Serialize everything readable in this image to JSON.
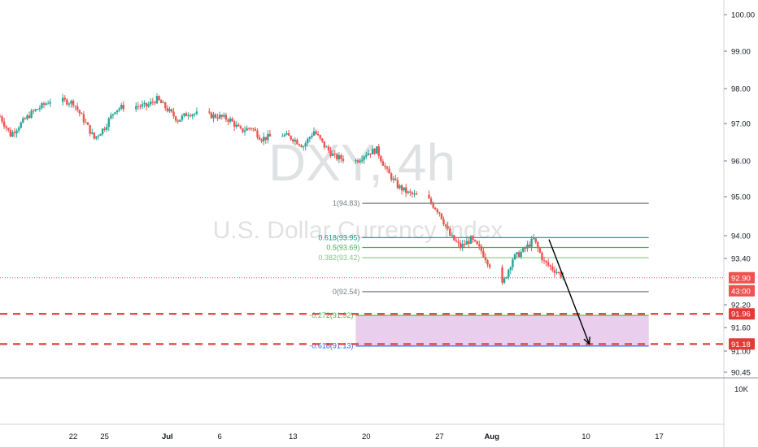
{
  "chart_data": {
    "type": "candlestick",
    "symbol": "DXY, 4h",
    "instrument": "U.S. Dollar Currency Index",
    "y_axis": {
      "ylim": [
        90.2,
        100.5
      ],
      "ticks": [
        {
          "value": 100.0,
          "label": "100.00"
        },
        {
          "value": 99.0,
          "label": "99.00"
        },
        {
          "value": 98.0,
          "label": "98.00"
        },
        {
          "value": 97.0,
          "label": "97.00"
        },
        {
          "value": 96.0,
          "label": "96.00"
        },
        {
          "value": 95.0,
          "label": "95.00"
        },
        {
          "value": 94.0,
          "label": "94.00"
        },
        {
          "value": 93.4,
          "label": "93.40"
        },
        {
          "value": 92.2,
          "label": "92.20"
        },
        {
          "value": 91.6,
          "label": "91.60"
        },
        {
          "value": 91.0,
          "label": "91.00"
        },
        {
          "value": 90.45,
          "label": "90.45"
        }
      ]
    },
    "x_axis": {
      "start_date": "2020-06-15",
      "end_date": "2020-08-21",
      "ticks": [
        {
          "date": "2020-06-22",
          "label": "22",
          "bold": false
        },
        {
          "date": "2020-06-25",
          "label": "25",
          "bold": false
        },
        {
          "date": "2020-07-01",
          "label": "Jul",
          "bold": true
        },
        {
          "date": "2020-07-06",
          "label": "6",
          "bold": false
        },
        {
          "date": "2020-07-13",
          "label": "13",
          "bold": false
        },
        {
          "date": "2020-07-20",
          "label": "20",
          "bold": false
        },
        {
          "date": "2020-07-27",
          "label": "27",
          "bold": false
        },
        {
          "date": "2020-08-01",
          "label": "Aug",
          "bold": true
        },
        {
          "date": "2020-08-10",
          "label": "10",
          "bold": false
        },
        {
          "date": "2020-08-17",
          "label": "17",
          "bold": false
        }
      ]
    },
    "price_path": [
      [
        "2020-06-15",
        97.2
      ],
      [
        "2020-06-16",
        96.7
      ],
      [
        "2020-06-17",
        97.0
      ],
      [
        "2020-06-18",
        97.3
      ],
      [
        "2020-06-19",
        97.5
      ],
      [
        "2020-06-20",
        97.7
      ],
      [
        "2020-06-22",
        97.6
      ],
      [
        "2020-06-23",
        97.1
      ],
      [
        "2020-06-24",
        96.6
      ],
      [
        "2020-06-25",
        96.9
      ],
      [
        "2020-06-26",
        97.4
      ],
      [
        "2020-06-27",
        97.5
      ],
      [
        "2020-06-29",
        97.5
      ],
      [
        "2020-06-30",
        97.7
      ],
      [
        "2020-07-01",
        97.4
      ],
      [
        "2020-07-02",
        97.1
      ],
      [
        "2020-07-03",
        97.3
      ],
      [
        "2020-07-06",
        97.2
      ],
      [
        "2020-07-07",
        97.1
      ],
      [
        "2020-07-08",
        96.8
      ],
      [
        "2020-07-09",
        96.9
      ],
      [
        "2020-07-10",
        96.6
      ],
      [
        "2020-07-12",
        96.7
      ],
      [
        "2020-07-13",
        96.6
      ],
      [
        "2020-07-14",
        96.4
      ],
      [
        "2020-07-15",
        96.8
      ],
      [
        "2020-07-16",
        96.4
      ],
      [
        "2020-07-17",
        96.1
      ],
      [
        "2020-07-19",
        96.0
      ],
      [
        "2020-07-20",
        96.2
      ],
      [
        "2020-07-21",
        96.3
      ],
      [
        "2020-07-22",
        95.7
      ],
      [
        "2020-07-23",
        95.3
      ],
      [
        "2020-07-24",
        95.1
      ],
      [
        "2020-07-26",
        94.9
      ],
      [
        "2020-07-27",
        94.6
      ],
      [
        "2020-07-28",
        94.0
      ],
      [
        "2020-07-29",
        93.7
      ],
      [
        "2020-07-30",
        93.9
      ],
      [
        "2020-07-31",
        93.6
      ],
      [
        "2020-08-02",
        92.7
      ],
      [
        "2020-08-03",
        93.4
      ],
      [
        "2020-08-04",
        93.6
      ],
      [
        "2020-08-05",
        93.9
      ],
      [
        "2020-08-06",
        93.3
      ],
      [
        "2020-08-07",
        93.1
      ],
      [
        "2020-08-08",
        92.9
      ]
    ],
    "current_price": {
      "value": 92.9,
      "label": "92.90",
      "countdown": "43:00"
    },
    "fibonacci": {
      "start_date": "2020-07-19",
      "end_date": "2020-08-16",
      "levels": [
        {
          "label": "1(94.83)",
          "value": 94.83,
          "color": "#787b86"
        },
        {
          "label": "0.618(93.95)",
          "value": 93.95,
          "color": "#089981"
        },
        {
          "label": "0.5(93.69)",
          "value": 93.69,
          "color": "#4caf50"
        },
        {
          "label": "0.382(93.42)",
          "value": 93.42,
          "color": "#81c784"
        },
        {
          "label": "0(92.54)",
          "value": 92.54,
          "color": "#787b86"
        },
        {
          "label": "-0.272(91.92)",
          "value": 91.92,
          "color": "#4caf50"
        },
        {
          "label": "-0.618(91.13)",
          "value": 91.13,
          "color": "#2962ff"
        }
      ],
      "zone": {
        "from": 91.92,
        "to": 91.13,
        "color": "#e1bee7"
      }
    },
    "support_lines": [
      {
        "value": 91.96,
        "label": "91.96",
        "color": "#e53935"
      },
      {
        "value": 91.18,
        "label": "91.18",
        "color": "#e53935"
      }
    ],
    "projection_arrow": {
      "from": [
        "2020-08-06",
        93.9
      ],
      "to": [
        "2020-08-10",
        91.18
      ],
      "color": "#000000"
    },
    "volume_axis": {
      "label": "10K"
    },
    "colors": {
      "up": "#26a69a",
      "down": "#ef5350",
      "text": "#131722",
      "grid_border": "#d1d4dc"
    }
  }
}
